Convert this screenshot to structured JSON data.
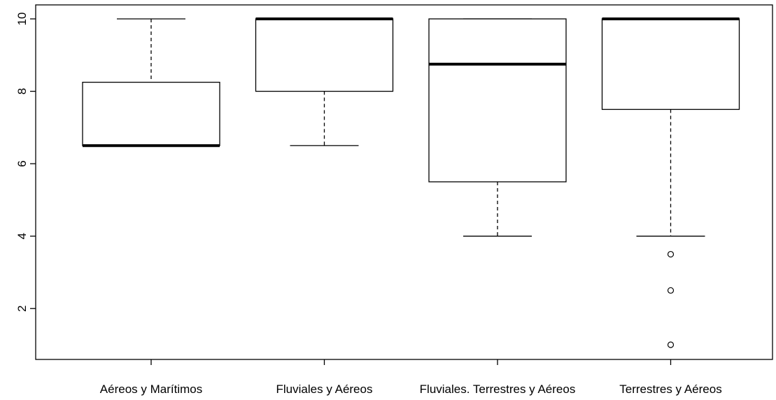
{
  "chart_data": {
    "type": "boxplot",
    "title": "",
    "xlabel": "",
    "ylabel": "",
    "ylim": [
      0.7,
      10.3
    ],
    "yticks": [
      2,
      4,
      6,
      8,
      10
    ],
    "grid": false,
    "categories": [
      "Aéreos y Marítimos",
      "Fluviales y Aéreos",
      "Fluviales. Terrestres y Aéreos",
      "Terrestres y Aéreos"
    ],
    "boxes": [
      {
        "whisker_low": 6.5,
        "q1": 6.5,
        "median": 6.5,
        "q3": 8.25,
        "whisker_high": 10,
        "outliers": []
      },
      {
        "whisker_low": 6.5,
        "q1": 8.0,
        "median": 10.0,
        "q3": 10.0,
        "whisker_high": 10,
        "outliers": []
      },
      {
        "whisker_low": 4.0,
        "q1": 5.5,
        "median": 8.75,
        "q3": 10.0,
        "whisker_high": 10,
        "outliers": []
      },
      {
        "whisker_low": 4.0,
        "q1": 7.5,
        "median": 10.0,
        "q3": 10.0,
        "whisker_high": 10,
        "outliers": [
          3.5,
          2.5,
          1.0
        ]
      }
    ]
  }
}
